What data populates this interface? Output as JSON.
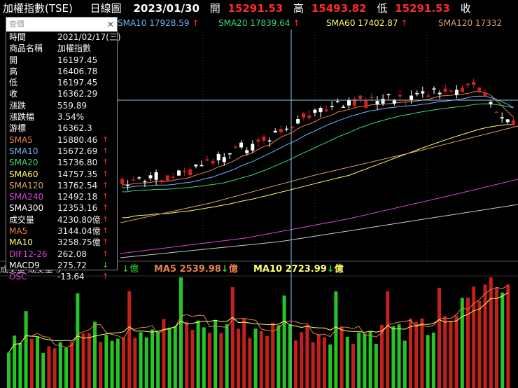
{
  "title": {
    "name": "加權指數(TSE)",
    "period": "日線圖",
    "date": "2023/01/30",
    "open_label": "開",
    "open": "15291.53",
    "high_label": "高",
    "high": "15493.82",
    "low_label": "低",
    "low": "15291.53",
    "close_label": "收"
  },
  "indicators": [
    {
      "label": "SMA10 17928.59",
      "arrow": "↑",
      "color": "#6fb3ff"
    },
    {
      "label": "SMA20 17839.64",
      "arrow": "↑",
      "color": "#33dd77"
    },
    {
      "label": "SMA60 17402.87",
      "arrow": "↑",
      "color": "#ffff66"
    },
    {
      "label": "SMA120 17332",
      "arrow": "",
      "color": "#d9a06b"
    }
  ],
  "panel": {
    "header": "查價",
    "close_glyph": "✕",
    "rows": [
      {
        "label": "時間",
        "value": "2021/02/17(三)",
        "lc": "#ffffff",
        "arrow": ""
      },
      {
        "label": "商品名稱",
        "value": "加權指數",
        "lc": "#ffffff",
        "arrow": ""
      },
      {
        "label": "開",
        "value": "16197.45",
        "lc": "#ffffff",
        "arrow": ""
      },
      {
        "label": "高",
        "value": "16406.78",
        "lc": "#ffffff",
        "arrow": ""
      },
      {
        "label": "低",
        "value": "16197.45",
        "lc": "#ffffff",
        "arrow": ""
      },
      {
        "label": "收",
        "value": "16362.29",
        "lc": "#ffffff",
        "arrow": ""
      },
      {
        "label": "漲跌",
        "value": "559.89",
        "lc": "#ffffff",
        "arrow": ""
      },
      {
        "label": "漲跌幅",
        "value": "3.54%",
        "lc": "#ffffff",
        "arrow": ""
      },
      {
        "label": "游標",
        "value": "16362.3",
        "lc": "#ffffff",
        "arrow": ""
      },
      {
        "label": "SMA5",
        "value": "15880.46",
        "lc": "#e8804a",
        "arrow": "↑",
        "dir": "up"
      },
      {
        "label": "SMA10",
        "value": "15672.69",
        "lc": "#6fb3ff",
        "arrow": "↑",
        "dir": "up"
      },
      {
        "label": "SMA20",
        "value": "15736.80",
        "lc": "#33dd77",
        "arrow": "↑",
        "dir": "up"
      },
      {
        "label": "SMA60",
        "value": "14757.35",
        "lc": "#ffff66",
        "arrow": "↑",
        "dir": "up"
      },
      {
        "label": "SMA120",
        "value": "13762.54",
        "lc": "#d9a06b",
        "arrow": "↑",
        "dir": "up"
      },
      {
        "label": "SMA240",
        "value": "12492.18",
        "lc": "#dd44dd",
        "arrow": "↑",
        "dir": "up"
      },
      {
        "label": "SMA300",
        "value": "12353.16",
        "lc": "#ffffff",
        "arrow": "↑",
        "dir": "up"
      },
      {
        "label": "成交量",
        "value": "4230.80億",
        "lc": "#ffffff",
        "arrow": "↑",
        "dir": "up"
      },
      {
        "label": "MA5",
        "value": "3144.04億",
        "lc": "#e8804a",
        "arrow": "↑",
        "dir": "up"
      },
      {
        "label": "MA10",
        "value": "3258.75億",
        "lc": "#ffff66",
        "arrow": "↑",
        "dir": "up"
      },
      {
        "label": "DIF12-26",
        "value": "262.08",
        "lc": "#dd44dd",
        "arrow": "↑",
        "dir": "up"
      },
      {
        "label": "MACD9",
        "value": "275.72",
        "lc": "#ffffff",
        "arrow": "↓",
        "dir": "down"
      },
      {
        "label": "OSC",
        "value": "-13.64",
        "lc": "#dd44dd",
        "arrow": "↑",
        "dir": "up"
      }
    ]
  },
  "volume_legend": {
    "left_text": "成交量  成交量 3",
    "unit_a": "↓億",
    "ma5_label": "MA5 2539.98",
    "ma5_arrow": "↓",
    "ma5_unit": "億",
    "ma10_label": "MA10 2723.99",
    "ma10_arrow": "↓",
    "ma10_unit": "億"
  },
  "colors": {
    "up": "#ff2a2a",
    "down": "#22dd22",
    "up_candle": "#d42020",
    "down_candle": "#ffffff",
    "vol_up": "#c4201c",
    "vol_down": "#26c526",
    "crosshair": "#8ec4e0",
    "grid": "#333333"
  }
}
